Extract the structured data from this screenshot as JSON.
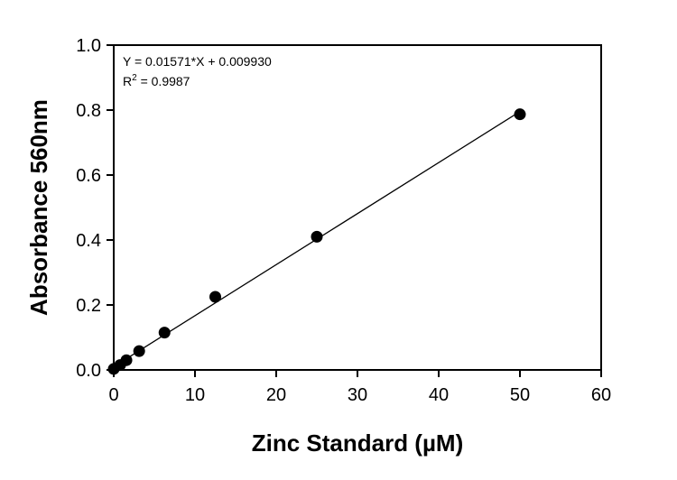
{
  "chart_data": {
    "type": "scatter",
    "title": "",
    "xlabel": "Zinc Standard (µM)",
    "ylabel": "Absorbance 560nm",
    "xlim": [
      0,
      60
    ],
    "ylim": [
      0,
      1.0
    ],
    "x_ticks": [
      "0",
      "10",
      "20",
      "30",
      "40",
      "50",
      "60"
    ],
    "y_ticks": [
      "0.0",
      "0.2",
      "0.4",
      "0.6",
      "0.8",
      "1.0"
    ],
    "grid": false,
    "series": [
      {
        "x": [
          0,
          0.78,
          1.56,
          3.13,
          6.25,
          12.5,
          25,
          50
        ],
        "y": [
          0.003,
          0.015,
          0.03,
          0.058,
          0.115,
          0.225,
          0.41,
          0.787
        ],
        "color": "#000000"
      }
    ],
    "fit_line": {
      "slope": 0.01571,
      "intercept": 0.00993,
      "x_range": [
        0,
        50
      ]
    },
    "annotations": {
      "equation": "Y = 0.01571*X + 0.009930",
      "r2_prefix": "R",
      "r2_sup": "2",
      "r2_value": " = 0.9987"
    }
  }
}
